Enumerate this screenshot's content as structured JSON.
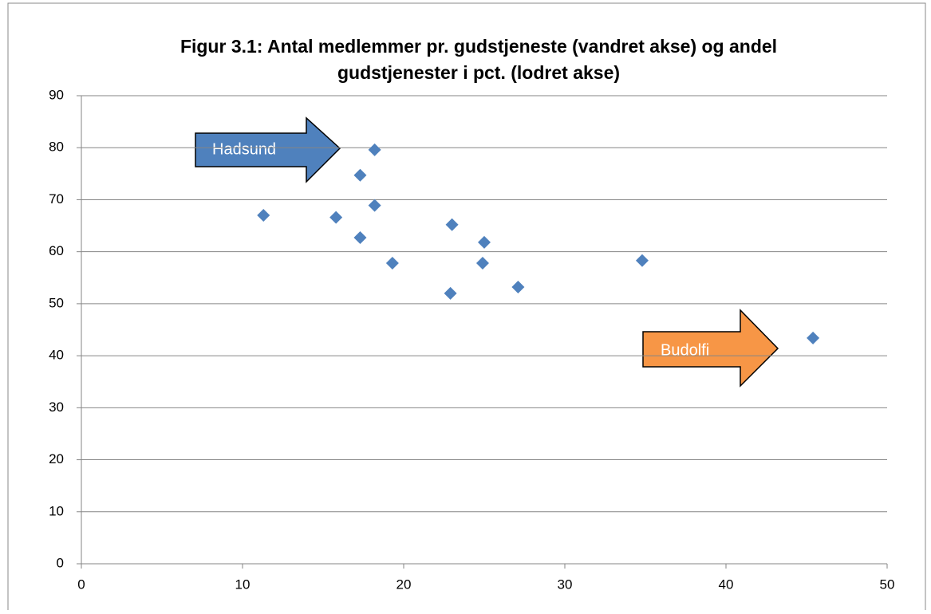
{
  "chart_data": {
    "type": "scatter",
    "title": [
      "Figur 3.1: Antal medlemmer pr. gudstjeneste  (vandret akse) og andel",
      "gudstjenester i pct. (lodret akse)"
    ],
    "series": [
      {
        "color": "#4f81bd",
        "x": [
          11.3,
          15.8,
          17.3,
          17.3,
          18.2,
          18.2,
          19.3,
          23.0,
          22.9,
          24.9,
          25.0,
          27.1,
          34.8,
          45.4
        ],
        "values": [
          67,
          66.6,
          62.7,
          74.7,
          79.6,
          68.9,
          57.8,
          65.2,
          52.0,
          57.8,
          61.8,
          53.2,
          58.3,
          43.4
        ]
      }
    ],
    "xlim": [
      0,
      50
    ],
    "xticks": [
      0,
      10,
      20,
      30,
      40,
      50
    ],
    "ylim": [
      0,
      90
    ],
    "yticks": [
      0,
      10,
      20,
      30,
      40,
      50,
      60,
      70,
      80,
      90
    ],
    "grid": true,
    "annotations": [
      {
        "text": "Hadsund",
        "color": "#4f81bd"
      },
      {
        "text": "Budolfi",
        "color": "#f79646"
      }
    ]
  }
}
